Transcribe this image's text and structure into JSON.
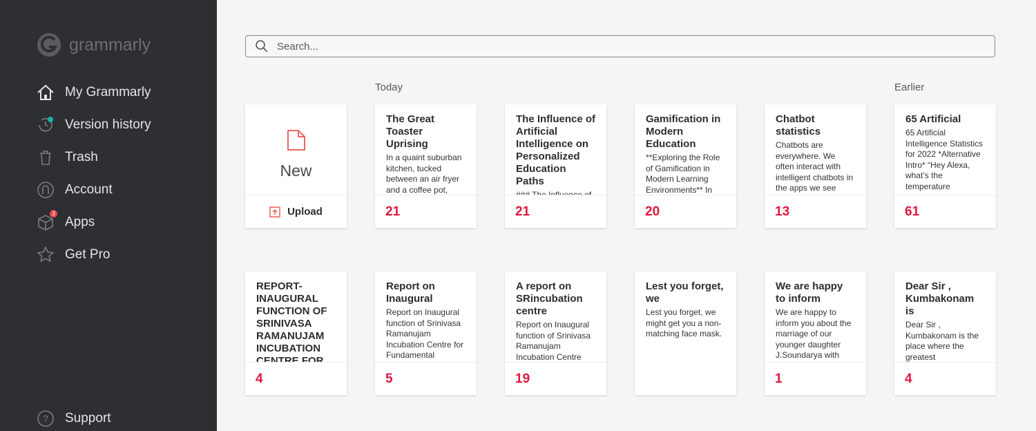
{
  "sidebar": {
    "logo": "grammarly",
    "nav": [
      {
        "label": "My Grammarly"
      },
      {
        "label": "Version history"
      },
      {
        "label": "Trash"
      },
      {
        "label": "Account"
      },
      {
        "label": "Apps",
        "badge": "3"
      },
      {
        "label": "Get Pro"
      }
    ],
    "support": "Support"
  },
  "search": {
    "placeholder": "Search..."
  },
  "sections": {
    "today": "Today",
    "earlier": "Earlier"
  },
  "new_card": {
    "label": "New",
    "upload": "Upload"
  },
  "documents": [
    {
      "title": "The Great Toaster Uprising",
      "preview": "In a quaint suburban kitchen, tucked between an air fryer and a coffee pot,",
      "count": 21
    },
    {
      "title": "The Influence of Artificial Intelligence on Personalized Education Paths",
      "preview": "### The Influence of",
      "count": 21
    },
    {
      "title": "Gamification in Modern Education",
      "preview": "**Exploring the Role of Gamification in Modern Learning Environments** In",
      "count": 20
    },
    {
      "title": "Chatbot statistics",
      "preview": "Chatbots are everywhere. We often interact with intelligent chatbots in the apps we see",
      "count": 13
    },
    {
      "title": "65 Artificial",
      "preview": "65 Artificial Intelligence Statistics for 2022 *Alternative Intro* “Hey Alexa, what’s the temperature",
      "count": 61
    },
    {
      "title": "REPORT-INAUGURAL FUNCTION OF SRINIVASA RAMANUJAM INCUBATION CENTRE FOR",
      "count": 4
    },
    {
      "title": "Report on Inaugural",
      "preview": "Report on Inaugural function of Srinivasa Ramanujam Incubation Centre for Fundamental",
      "count": 5
    },
    {
      "title": "A report on SRincubation centre",
      "preview": "Report on Inaugural function of Srinivasa Ramanujam Incubation Centre",
      "count": 19
    },
    {
      "title": "Lest you forget, we",
      "preview": "Lest you forget, we might get you a non-matching face mask."
    },
    {
      "title": "We are happy to inform",
      "preview": "We are happy to inform you about the marriage of our younger daughter J.Soundarya with",
      "count": 1
    },
    {
      "title": "Dear Sir , Kumbakonam is",
      "preview": "Dear Sir , Kumbakonam is the place where the greatest mathematician",
      "count": 4
    }
  ]
}
